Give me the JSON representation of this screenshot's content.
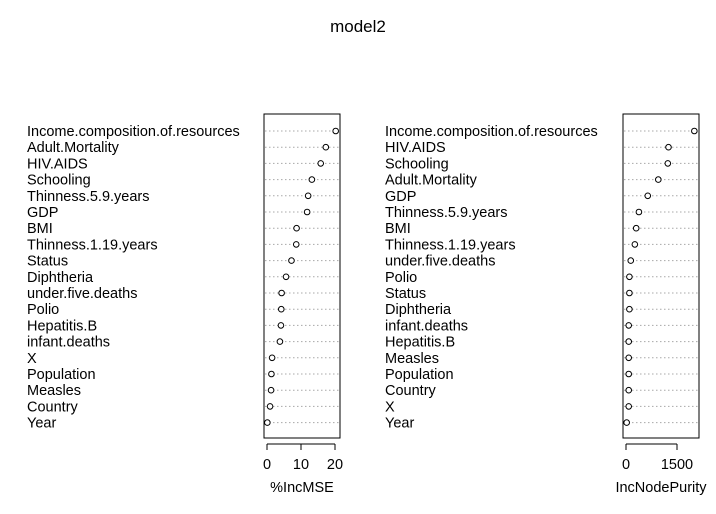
{
  "title": "model2",
  "chart_data": [
    {
      "type": "scatter",
      "variant": "dotchart",
      "xlabel": "%IncMSE",
      "ticks": [
        0,
        10,
        20
      ],
      "xlim": [
        0,
        20
      ],
      "labels": [
        "Income.composition.of.resources",
        "Adult.Mortality",
        "HIV.AIDS",
        "Schooling",
        "Thinness.5.9.years",
        "GDP",
        "BMI",
        "Thinness.1.19.years",
        "Status",
        "Diphtheria",
        "under.five.deaths",
        "Polio",
        "Hepatitis.B",
        "infant.deaths",
        "X",
        "Population",
        "Measles",
        "Country",
        "Year"
      ],
      "values": [
        20.2,
        17.3,
        15.8,
        13.2,
        12.1,
        11.8,
        8.7,
        8.6,
        7.2,
        5.6,
        4.3,
        4.2,
        4.1,
        3.8,
        1.5,
        1.3,
        1.2,
        0.9,
        0.1
      ],
      "grid": "dotted horizontal guides"
    },
    {
      "type": "scatter",
      "variant": "dotchart",
      "xlabel": "IncNodePurity",
      "ticks": [
        0,
        1500
      ],
      "xlim": [
        0,
        2000
      ],
      "labels": [
        "Income.composition.of.resources",
        "HIV.AIDS",
        "Schooling",
        "Adult.Mortality",
        "GDP",
        "Thinness.5.9.years",
        "BMI",
        "Thinness.1.19.years",
        "under.five.deaths",
        "Polio",
        "Status",
        "Diphtheria",
        "infant.deaths",
        "Hepatitis.B",
        "Measles",
        "Population",
        "Country",
        "X",
        "Year"
      ],
      "values": [
        2010,
        1250,
        1230,
        950,
        640,
        380,
        300,
        260,
        140,
        100,
        100,
        100,
        80,
        80,
        80,
        80,
        80,
        80,
        20
      ],
      "grid": "dotted horizontal guides"
    }
  ]
}
